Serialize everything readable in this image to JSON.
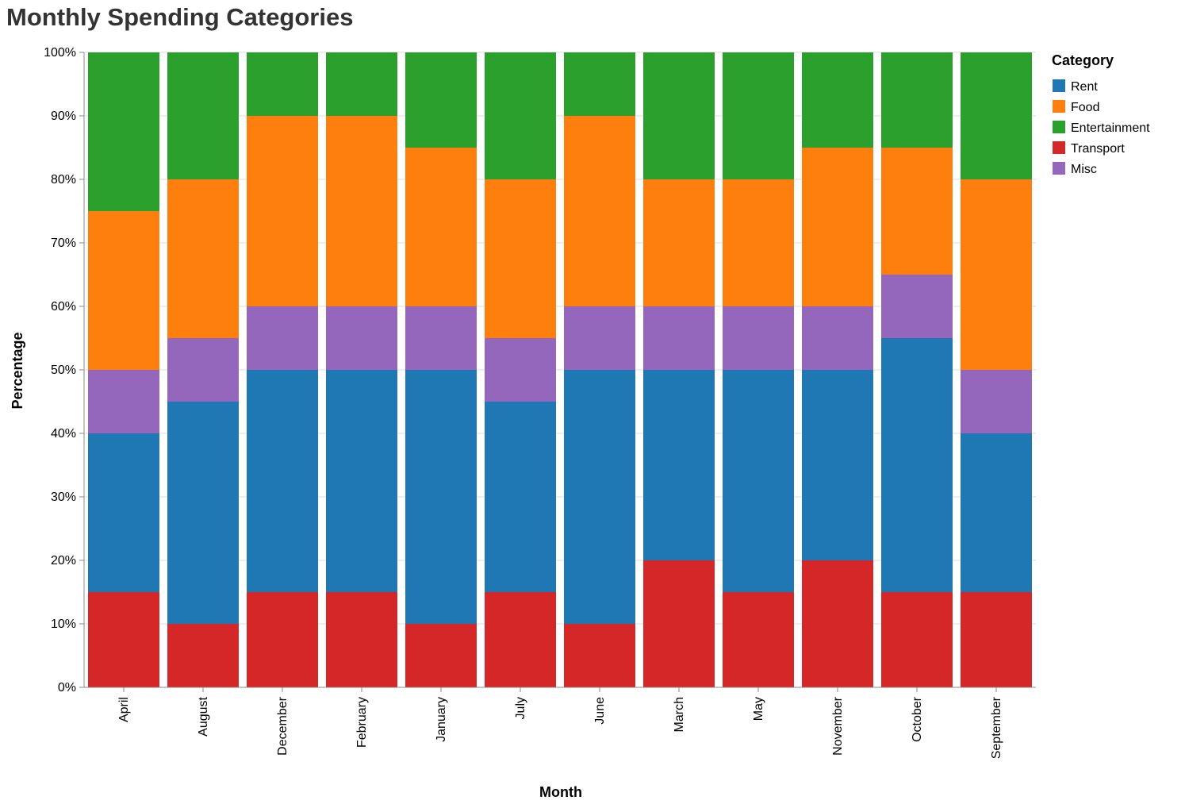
{
  "chart_data": {
    "type": "bar",
    "stacked": "normalize",
    "title": "Monthly Spending Categories",
    "xlabel": "Month",
    "ylabel": "Percentage",
    "ylim": [
      0,
      100
    ],
    "y_ticks": [
      "0%",
      "10%",
      "20%",
      "30%",
      "40%",
      "50%",
      "60%",
      "70%",
      "80%",
      "90%",
      "100%"
    ],
    "grid": true,
    "legend_title": "Category",
    "legend_position": "right",
    "categories": [
      "April",
      "August",
      "December",
      "February",
      "January",
      "July",
      "June",
      "March",
      "May",
      "November",
      "October",
      "September"
    ],
    "stack_order": [
      "Transport",
      "Rent",
      "Misc",
      "Food",
      "Entertainment"
    ],
    "series": [
      {
        "name": "Rent",
        "color": "#1f77b4",
        "values": [
          25,
          35,
          35,
          35,
          40,
          30,
          40,
          30,
          35,
          30,
          40,
          25
        ]
      },
      {
        "name": "Food",
        "color": "#ff7f0e",
        "values": [
          25,
          25,
          30,
          30,
          25,
          25,
          30,
          20,
          20,
          25,
          20,
          30
        ]
      },
      {
        "name": "Entertainment",
        "color": "#2ca02c",
        "values": [
          25,
          20,
          10,
          10,
          15,
          20,
          10,
          20,
          20,
          15,
          15,
          20
        ]
      },
      {
        "name": "Transport",
        "color": "#d62728",
        "values": [
          15,
          10,
          15,
          15,
          10,
          15,
          10,
          20,
          15,
          20,
          15,
          15
        ]
      },
      {
        "name": "Misc",
        "color": "#9467bd",
        "values": [
          10,
          10,
          10,
          10,
          10,
          10,
          10,
          10,
          10,
          10,
          10,
          10
        ]
      }
    ]
  }
}
